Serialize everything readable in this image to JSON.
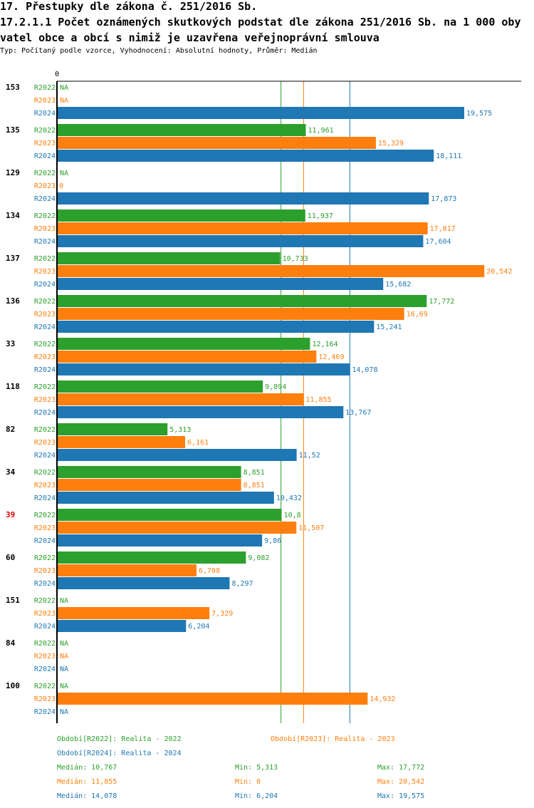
{
  "title": "17. Přestupky dle zákona č. 251/2016 Sb.",
  "subtitle_title": "17.2.1.1 Počet oznámených skutkových podstat dle zákona 251/2016 Sb. na 1 000 obyvatel obce a obcí s nimiž je uzavřena veřejnoprávní smlouva",
  "meta": "Typ: Počítaný podle vzorce, Vyhodnocení: Absolutní hodnoty, Průměr: Medián",
  "chart_data": {
    "type": "bar",
    "orientation": "horizontal",
    "x_tick_labels": [
      "0"
    ],
    "xlim": [
      0,
      20542
    ],
    "na_label": "NA",
    "highlight_category": "39",
    "highlight_color": "#e00000",
    "categories": [
      "153",
      "135",
      "129",
      "134",
      "137",
      "136",
      "33",
      "118",
      "82",
      "34",
      "39",
      "60",
      "151",
      "84",
      "100"
    ],
    "series": [
      {
        "name": "R2022",
        "color": "#2ca02c",
        "values": [
          null,
          11961,
          null,
          11937,
          10733,
          17772,
          12164,
          9894,
          5313,
          8851,
          10800,
          9082,
          null,
          null,
          null
        ]
      },
      {
        "name": "R2023",
        "color": "#ff7f0e",
        "values": [
          null,
          15329,
          0,
          17817,
          20542,
          16690,
          12469,
          11855,
          6161,
          8851,
          11507,
          6708,
          7329,
          null,
          14932
        ]
      },
      {
        "name": "R2024",
        "color": "#1f77b4",
        "values": [
          19575,
          18111,
          17873,
          17604,
          15682,
          15241,
          14078,
          13767,
          11520,
          10432,
          9860,
          8297,
          6204,
          null,
          null
        ]
      }
    ],
    "legend": [
      {
        "text": "Období[R2022]: Realita - 2022",
        "color": "#2ca02c"
      },
      {
        "text": "Období[R2023]: Realita - 2023",
        "color": "#ff7f0e"
      },
      {
        "text": "Období[R2024]: Realita - 2024",
        "color": "#1f77b4"
      }
    ],
    "stats": [
      {
        "color": "#2ca02c",
        "median": "Medián: 10,767",
        "min": "Min: 5,313",
        "max": "Max: 17,772",
        "median_value": 10767
      },
      {
        "color": "#ff7f0e",
        "median": "Medián: 11,855",
        "min": "Min: 0",
        "max": "Max: 20,542",
        "median_value": 11855
      },
      {
        "color": "#1f77b4",
        "median": "Medián: 14,078",
        "min": "Min: 6,204",
        "max": "Max: 19,575",
        "median_value": 14078
      }
    ]
  }
}
